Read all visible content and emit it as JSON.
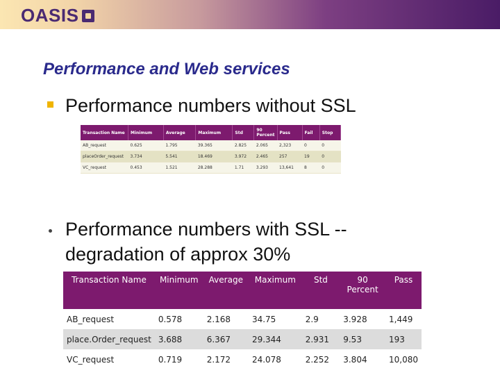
{
  "logo": "OASIS",
  "title": "Performance and Web services",
  "point1": "Performance numbers without SSL",
  "point2": "Performance numbers with SSL  -- degradation of approx 30%",
  "table1": {
    "headers": [
      "Transaction Name",
      "Minimum",
      "Average",
      "Maximum",
      "Std",
      "90 Percent",
      "Pass",
      "Fail",
      "Stop"
    ],
    "rows": [
      [
        "AB_request",
        "0.625",
        "1.795",
        "39.365",
        "2.825",
        "2.065",
        "2,323",
        "0",
        "0"
      ],
      [
        "placeOrder_request",
        "3.734",
        "5.541",
        "18.469",
        "3.972",
        "2.465",
        "257",
        "19",
        "0"
      ],
      [
        "VC_request",
        "0.453",
        "1.521",
        "28.288",
        "1.71",
        "3.293",
        "13,641",
        "8",
        "0"
      ]
    ]
  },
  "table2": {
    "headers": [
      "Transaction Name",
      "Minimum",
      "Average",
      "Maximum",
      "Std",
      "90 Percent",
      "Pass"
    ],
    "rows": [
      [
        "AB_request",
        "0.578",
        "2.168",
        "34.75",
        "2.9",
        "3.928",
        "1,449"
      ],
      [
        "place.Order_request",
        "3.688",
        "6.367",
        "29.344",
        "2.931",
        "9.53",
        "193"
      ],
      [
        "VC_request",
        "0.719",
        "2.172",
        "24.078",
        "2.252",
        "3.804",
        "10,080"
      ]
    ]
  }
}
